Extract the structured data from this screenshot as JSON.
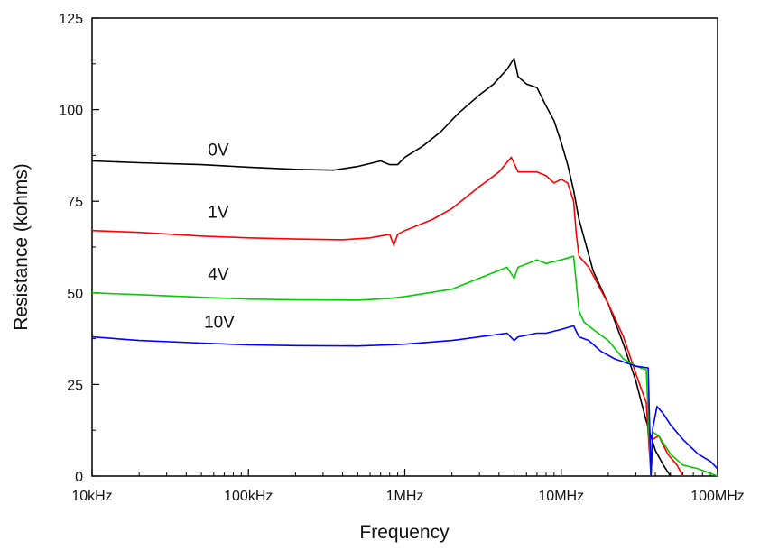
{
  "chart_data": {
    "type": "line",
    "xlabel": "Frequency",
    "ylabel": "Resistance (kohms)",
    "x_scale": "log",
    "xlim": [
      10000,
      100000000
    ],
    "ylim": [
      0,
      125
    ],
    "x_ticks": [
      {
        "value": 10000,
        "label": "10kHz"
      },
      {
        "value": 100000,
        "label": "100kHz"
      },
      {
        "value": 1000000,
        "label": "1MHz"
      },
      {
        "value": 10000000,
        "label": "10MHz"
      },
      {
        "value": 100000000,
        "label": "100MHz"
      }
    ],
    "y_ticks": [
      {
        "value": 0,
        "label": "0"
      },
      {
        "value": 25,
        "label": "25"
      },
      {
        "value": 50,
        "label": "50"
      },
      {
        "value": 75,
        "label": "75"
      },
      {
        "value": 100,
        "label": "100"
      },
      {
        "value": 125,
        "label": "125"
      }
    ],
    "grid": false,
    "series": [
      {
        "name": "0V",
        "color": "#000000",
        "label_at": [
          55000,
          87.5
        ],
        "points": [
          [
            10000,
            86
          ],
          [
            20000,
            85.5
          ],
          [
            50000,
            85
          ],
          [
            100000,
            84.3
          ],
          [
            200000,
            83.7
          ],
          [
            350000,
            83.5
          ],
          [
            500000,
            84.5
          ],
          [
            700000,
            86
          ],
          [
            800000,
            85
          ],
          [
            900000,
            85
          ],
          [
            1000000,
            87
          ],
          [
            1300000,
            90
          ],
          [
            1700000,
            94
          ],
          [
            2200000,
            99
          ],
          [
            3000000,
            104
          ],
          [
            3700000,
            107
          ],
          [
            4500000,
            111
          ],
          [
            5000000,
            114
          ],
          [
            5300000,
            109
          ],
          [
            6000000,
            107
          ],
          [
            7000000,
            106
          ],
          [
            8000000,
            101
          ],
          [
            9000000,
            97
          ],
          [
            10000000,
            91
          ],
          [
            11000000,
            85
          ],
          [
            12000000,
            78
          ],
          [
            13000000,
            70
          ],
          [
            14000000,
            65
          ],
          [
            16000000,
            56
          ],
          [
            20000000,
            47
          ],
          [
            25000000,
            36
          ],
          [
            30000000,
            26
          ],
          [
            35000000,
            15
          ],
          [
            40000000,
            7
          ],
          [
            45000000,
            3
          ],
          [
            50000000,
            0
          ]
        ]
      },
      {
        "name": "1V",
        "color": "#ff0000",
        "label_at": [
          55000,
          70.5
        ],
        "points": [
          [
            10000,
            67
          ],
          [
            20000,
            66.5
          ],
          [
            50000,
            65.5
          ],
          [
            100000,
            65
          ],
          [
            200000,
            64.7
          ],
          [
            400000,
            64.5
          ],
          [
            600000,
            65
          ],
          [
            800000,
            66
          ],
          [
            850000,
            63
          ],
          [
            900000,
            66
          ],
          [
            1000000,
            67
          ],
          [
            1500000,
            70
          ],
          [
            2000000,
            73
          ],
          [
            3000000,
            79
          ],
          [
            4000000,
            83
          ],
          [
            4800000,
            87
          ],
          [
            5300000,
            83
          ],
          [
            6000000,
            83
          ],
          [
            7000000,
            83
          ],
          [
            8000000,
            82
          ],
          [
            9000000,
            80
          ],
          [
            10000000,
            81
          ],
          [
            11000000,
            80
          ],
          [
            12000000,
            75
          ],
          [
            12500000,
            66
          ],
          [
            13000000,
            60
          ],
          [
            15000000,
            57
          ],
          [
            20000000,
            47
          ],
          [
            25000000,
            38
          ],
          [
            30000000,
            28
          ],
          [
            35000000,
            20
          ],
          [
            37500000,
            0
          ],
          [
            38500000,
            10
          ],
          [
            42000000,
            11
          ],
          [
            48000000,
            6
          ],
          [
            55000000,
            3
          ],
          [
            60000000,
            0
          ]
        ]
      },
      {
        "name": "4V",
        "color": "#00cc00",
        "label_at": [
          55000,
          53.5
        ],
        "points": [
          [
            10000,
            50
          ],
          [
            20000,
            49.5
          ],
          [
            50000,
            48.8
          ],
          [
            100000,
            48.3
          ],
          [
            200000,
            48.1
          ],
          [
            500000,
            48
          ],
          [
            800000,
            48.5
          ],
          [
            1000000,
            49
          ],
          [
            2000000,
            51
          ],
          [
            3000000,
            54
          ],
          [
            4500000,
            57
          ],
          [
            5000000,
            54
          ],
          [
            5300000,
            57
          ],
          [
            7000000,
            59
          ],
          [
            8000000,
            58
          ],
          [
            10000000,
            59
          ],
          [
            12000000,
            60
          ],
          [
            13000000,
            45
          ],
          [
            14000000,
            42
          ],
          [
            16000000,
            40
          ],
          [
            20000000,
            37
          ],
          [
            25000000,
            32
          ],
          [
            30000000,
            30
          ],
          [
            35000000,
            29
          ],
          [
            37500000,
            0
          ],
          [
            38500000,
            12
          ],
          [
            42000000,
            11
          ],
          [
            50000000,
            6
          ],
          [
            60000000,
            3
          ],
          [
            75000000,
            2
          ],
          [
            100000000,
            0
          ]
        ]
      },
      {
        "name": "10V",
        "color": "#0000ff",
        "label_at": [
          52000,
          40.5
        ],
        "points": [
          [
            10000,
            38
          ],
          [
            20000,
            37
          ],
          [
            50000,
            36.3
          ],
          [
            100000,
            35.8
          ],
          [
            200000,
            35.6
          ],
          [
            500000,
            35.5
          ],
          [
            800000,
            35.8
          ],
          [
            1000000,
            36
          ],
          [
            2000000,
            37
          ],
          [
            3000000,
            38
          ],
          [
            4500000,
            39
          ],
          [
            5000000,
            37
          ],
          [
            5300000,
            38
          ],
          [
            7000000,
            39
          ],
          [
            8000000,
            39
          ],
          [
            10000000,
            40
          ],
          [
            12000000,
            41
          ],
          [
            13000000,
            38
          ],
          [
            15000000,
            37
          ],
          [
            18000000,
            34
          ],
          [
            22000000,
            32
          ],
          [
            30000000,
            30
          ],
          [
            36000000,
            29.5
          ],
          [
            37500000,
            0
          ],
          [
            38500000,
            13
          ],
          [
            41000000,
            19
          ],
          [
            45000000,
            17
          ],
          [
            50000000,
            14
          ],
          [
            60000000,
            10
          ],
          [
            75000000,
            6
          ],
          [
            90000000,
            4
          ],
          [
            100000000,
            2
          ]
        ]
      }
    ]
  }
}
